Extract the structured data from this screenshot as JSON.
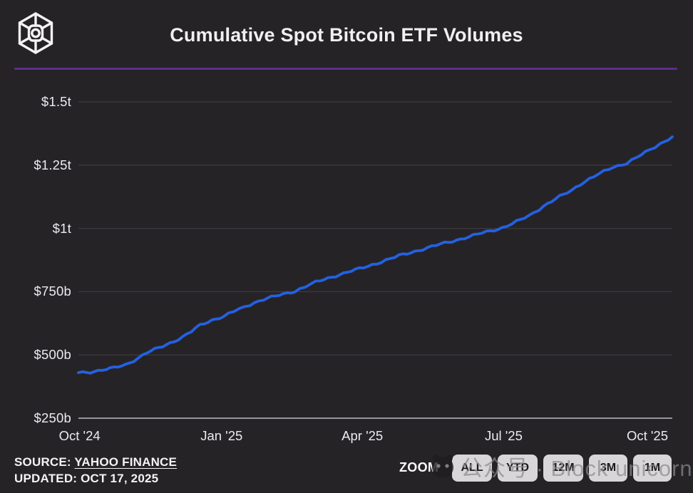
{
  "header": {
    "title": "Cumulative Spot Bitcoin ETF Volumes",
    "accent_color": "#622c8c",
    "logo": "the-block-cube-logo"
  },
  "footer": {
    "source_label": "SOURCE:",
    "source_value": "YAHOO FINANCE",
    "updated_label": "UPDATED:",
    "updated_value": "OCT 17, 2025",
    "zoom_label": "ZOOM",
    "buttons": [
      "ALL",
      "YTD",
      "12M",
      "3M",
      "1M"
    ]
  },
  "watermark": {
    "text": "公众号 · Block unicorn",
    "icon": "panda-face-icon"
  },
  "chart_data": {
    "type": "line",
    "title": "Cumulative Spot Bitcoin ETF Volumes",
    "legend": "none",
    "grid": "horizontal",
    "line_color": "#2361e0",
    "grid_color": "#3a373c",
    "axis_color": "#98959a",
    "ylim": [
      250,
      1500
    ],
    "y_ticks": [
      {
        "label": "$1.5t",
        "value": 1500
      },
      {
        "label": "$1.25t",
        "value": 1250
      },
      {
        "label": "$1t",
        "value": 1000
      },
      {
        "label": "$750b",
        "value": 750
      },
      {
        "label": "$500b",
        "value": 500
      },
      {
        "label": "$250b",
        "value": 250
      }
    ],
    "x_ticks": [
      {
        "label": "Oct '24",
        "t": 0.002
      },
      {
        "label": "Jan '25",
        "t": 0.241
      },
      {
        "label": "Apr '25",
        "t": 0.478
      },
      {
        "label": "Jul '25",
        "t": 0.716
      },
      {
        "label": "Oct '25",
        "t": 0.958
      }
    ],
    "x_range": [
      "Oct 2024",
      "Oct 17, 2025"
    ],
    "series": [
      {
        "name": "cumulative-spot-bitcoin-etf-volume-billions-usd",
        "points": [
          [
            0.0,
            430
          ],
          [
            0.02,
            433
          ],
          [
            0.04,
            440
          ],
          [
            0.06,
            449
          ],
          [
            0.08,
            462
          ],
          [
            0.1,
            487
          ],
          [
            0.115,
            508
          ],
          [
            0.135,
            528
          ],
          [
            0.155,
            548
          ],
          [
            0.175,
            570
          ],
          [
            0.19,
            592
          ],
          [
            0.205,
            618
          ],
          [
            0.225,
            638
          ],
          [
            0.244,
            652
          ],
          [
            0.262,
            672
          ],
          [
            0.28,
            690
          ],
          [
            0.305,
            715
          ],
          [
            0.325,
            728
          ],
          [
            0.345,
            740
          ],
          [
            0.364,
            752
          ],
          [
            0.382,
            770
          ],
          [
            0.4,
            788
          ],
          [
            0.42,
            803
          ],
          [
            0.44,
            818
          ],
          [
            0.46,
            832
          ],
          [
            0.48,
            845
          ],
          [
            0.51,
            868
          ],
          [
            0.54,
            892
          ],
          [
            0.56,
            905
          ],
          [
            0.58,
            918
          ],
          [
            0.61,
            938
          ],
          [
            0.63,
            950
          ],
          [
            0.65,
            962
          ],
          [
            0.68,
            982
          ],
          [
            0.713,
            1002
          ],
          [
            0.73,
            1018
          ],
          [
            0.745,
            1035
          ],
          [
            0.757,
            1048
          ],
          [
            0.775,
            1075
          ],
          [
            0.79,
            1098
          ],
          [
            0.81,
            1125
          ],
          [
            0.83,
            1150
          ],
          [
            0.845,
            1175
          ],
          [
            0.86,
            1195
          ],
          [
            0.885,
            1225
          ],
          [
            0.9,
            1242
          ],
          [
            0.923,
            1258
          ],
          [
            0.94,
            1280
          ],
          [
            0.962,
            1310
          ],
          [
            0.98,
            1335
          ],
          [
            1.0,
            1362
          ]
        ]
      }
    ]
  }
}
